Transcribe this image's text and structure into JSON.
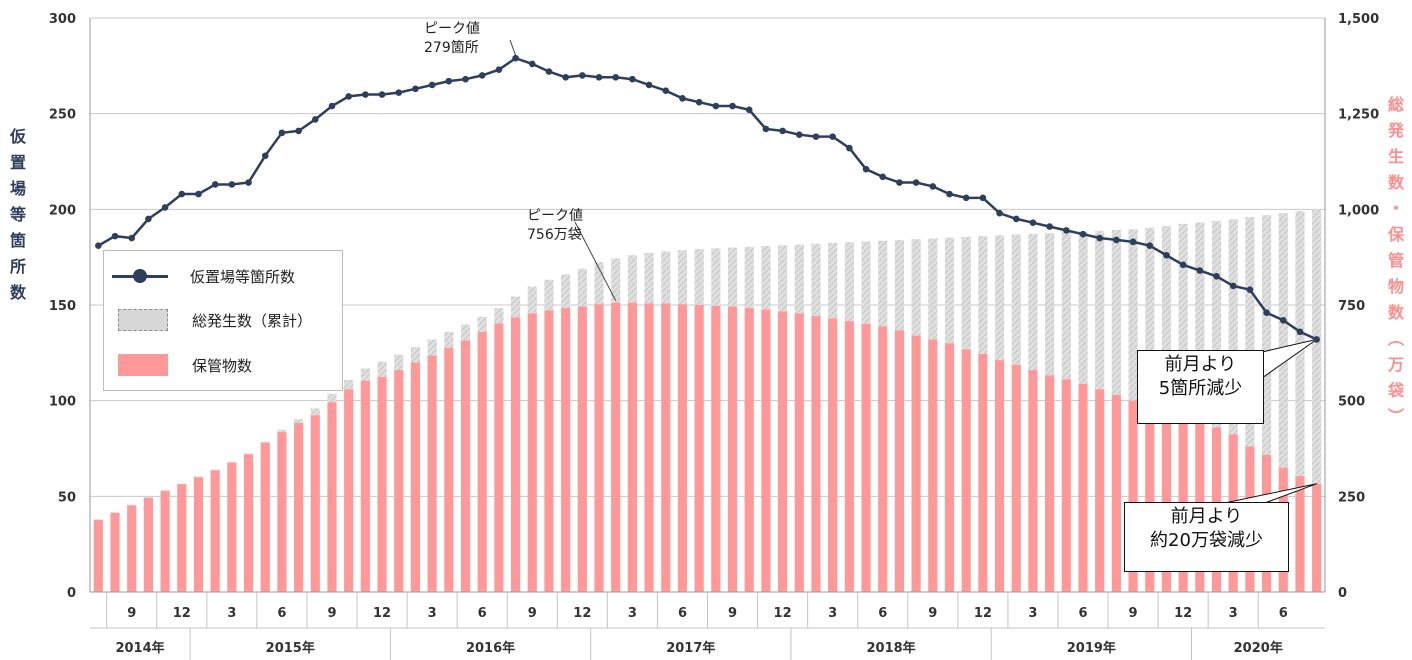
{
  "chart_data": {
    "type": "bar+line",
    "x_month_ticks": [
      "9",
      "12",
      "3",
      "6",
      "9",
      "12",
      "3",
      "6",
      "9",
      "12",
      "3",
      "6",
      "9",
      "12",
      "3",
      "6",
      "9",
      "12",
      "3",
      "6",
      "9",
      "12",
      "3",
      "6"
    ],
    "x_year_labels": [
      "2014年",
      "2015年",
      "2016年",
      "2017年",
      "2018年",
      "2019年",
      "2020年"
    ],
    "y_left": {
      "label": "仮置場等箇所数",
      "ylim": [
        0,
        300
      ],
      "ticks": [
        "0",
        "50",
        "100",
        "150",
        "200",
        "250",
        "300"
      ]
    },
    "y_right": {
      "label": "総発生数・保管物数（万袋）",
      "ylim": [
        0,
        1500
      ],
      "ticks": [
        "0",
        "250",
        "500",
        "750",
        "1,000",
        "1,250",
        "1,500"
      ]
    },
    "legend": [
      "仮置場等箇所数",
      "総発生数（累計）",
      "保管物数"
    ],
    "series": [
      {
        "name": "仮置場等箇所数",
        "type": "line",
        "axis": "left",
        "color": "#2e3f5c",
        "values": [
          181,
          186,
          185,
          195,
          201,
          208,
          208,
          213,
          213,
          214,
          228,
          240,
          241,
          247,
          254,
          259,
          260,
          260,
          261,
          263,
          265,
          267,
          268,
          270,
          273,
          279,
          276,
          272,
          269,
          270,
          269,
          269,
          268,
          265,
          262,
          258,
          256,
          254,
          254,
          252,
          242,
          241,
          239,
          238,
          238,
          232,
          221,
          217,
          214,
          214,
          212,
          208,
          206,
          206,
          198,
          195,
          193,
          191,
          189,
          187,
          185,
          184,
          183,
          181,
          176,
          171,
          168,
          165,
          160,
          158,
          146,
          142,
          136,
          132
        ]
      },
      {
        "name": "総発生数（累計）",
        "type": "bar",
        "axis": "right",
        "color": "#d9d9d9",
        "values": [
          190,
          208,
          228,
          248,
          266,
          283,
          302,
          320,
          340,
          362,
          393,
          424,
          452,
          480,
          518,
          554,
          584,
          602,
          620,
          640,
          660,
          680,
          699,
          719,
          742,
          772,
          798,
          816,
          830,
          845,
          862,
          872,
          880,
          886,
          890,
          893,
          896,
          898,
          900,
          902,
          904,
          906,
          908,
          910,
          912,
          914,
          916,
          918,
          920,
          922,
          924,
          926,
          928,
          930,
          932,
          934,
          936,
          938,
          940,
          942,
          944,
          946,
          948,
          952,
          956,
          962,
          966,
          970,
          974,
          980,
          985,
          990,
          995,
          1000
        ]
      },
      {
        "name": "保管物数",
        "type": "bar",
        "axis": "right",
        "color": "#ff9999",
        "values": [
          188,
          207,
          226,
          246,
          264,
          282,
          300,
          318,
          338,
          360,
          390,
          418,
          442,
          462,
          496,
          530,
          552,
          562,
          580,
          600,
          618,
          638,
          657,
          680,
          702,
          718,
          728,
          736,
          742,
          746,
          752,
          756,
          756,
          754,
          754,
          752,
          750,
          748,
          746,
          742,
          738,
          733,
          728,
          721,
          715,
          708,
          701,
          694,
          684,
          670,
          660,
          650,
          634,
          622,
          606,
          594,
          580,
          566,
          556,
          544,
          530,
          515,
          500,
          484,
          468,
          455,
          440,
          430,
          412,
          380,
          358,
          325,
          303,
          283
        ]
      }
    ],
    "annotations": [
      {
        "id": "peak-sites",
        "lines": [
          "ピーク値",
          "279箇所"
        ]
      },
      {
        "id": "peak-bags",
        "lines": [
          "ピーク値",
          "756万袋"
        ]
      }
    ],
    "callouts": [
      {
        "id": "sites-change",
        "lines": [
          "前月より",
          "5箇所減少"
        ]
      },
      {
        "id": "bags-change",
        "lines": [
          "前月より",
          "約20万袋減少"
        ]
      }
    ]
  }
}
